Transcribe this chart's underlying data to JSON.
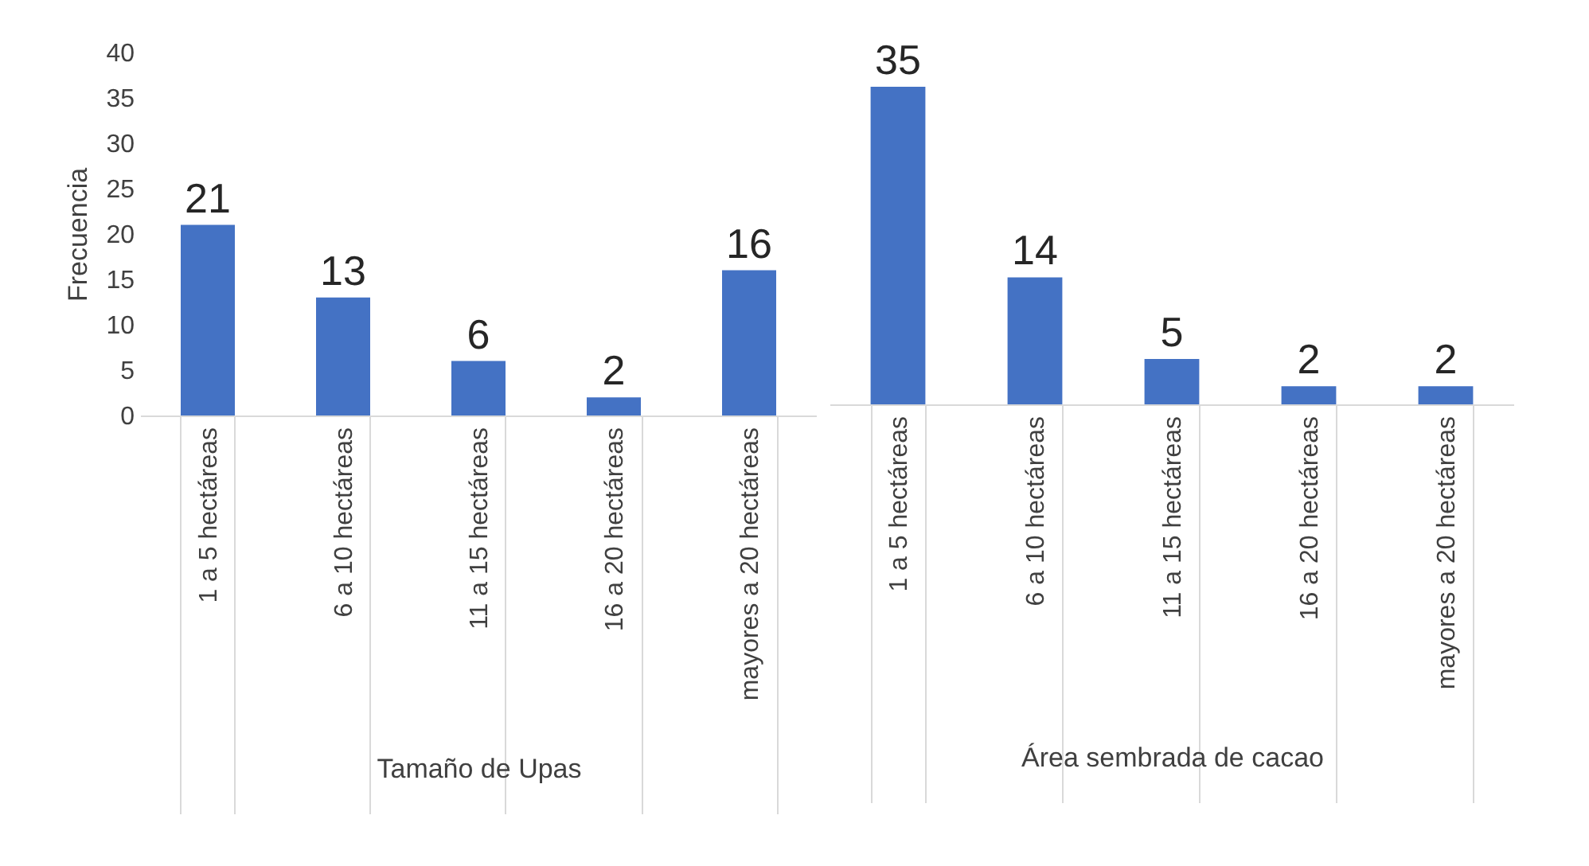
{
  "chart_data": [
    {
      "type": "bar",
      "categories": [
        "1 a 5 hectáreas",
        "6 a 10 hectáreas",
        "11 a 15 hectáreas",
        "16  a 20 hectáreas",
        "mayores a 20 hectáreas"
      ],
      "values": [
        21,
        13,
        6,
        2,
        16
      ],
      "color": "#4472c4",
      "ylim": [
        0,
        40
      ],
      "yticks": [
        0,
        5,
        10,
        15,
        20,
        25,
        30,
        35,
        40
      ],
      "ylabel": "Frecuencia",
      "xlabel": "Tamaño de Upas",
      "data_labels": true
    },
    {
      "type": "bar",
      "categories": [
        "1 a 5 hectáreas",
        "6 a 10 hectáreas",
        "11 a 15 hectáreas",
        "16  a 20 hectáreas",
        "mayores a 20 hectáreas"
      ],
      "values": [
        35,
        14,
        5,
        2,
        2
      ],
      "color": "#4472c4",
      "xlabel": "Área sembrada de cacao",
      "data_labels": true,
      "tick_labels": "x"
    }
  ]
}
